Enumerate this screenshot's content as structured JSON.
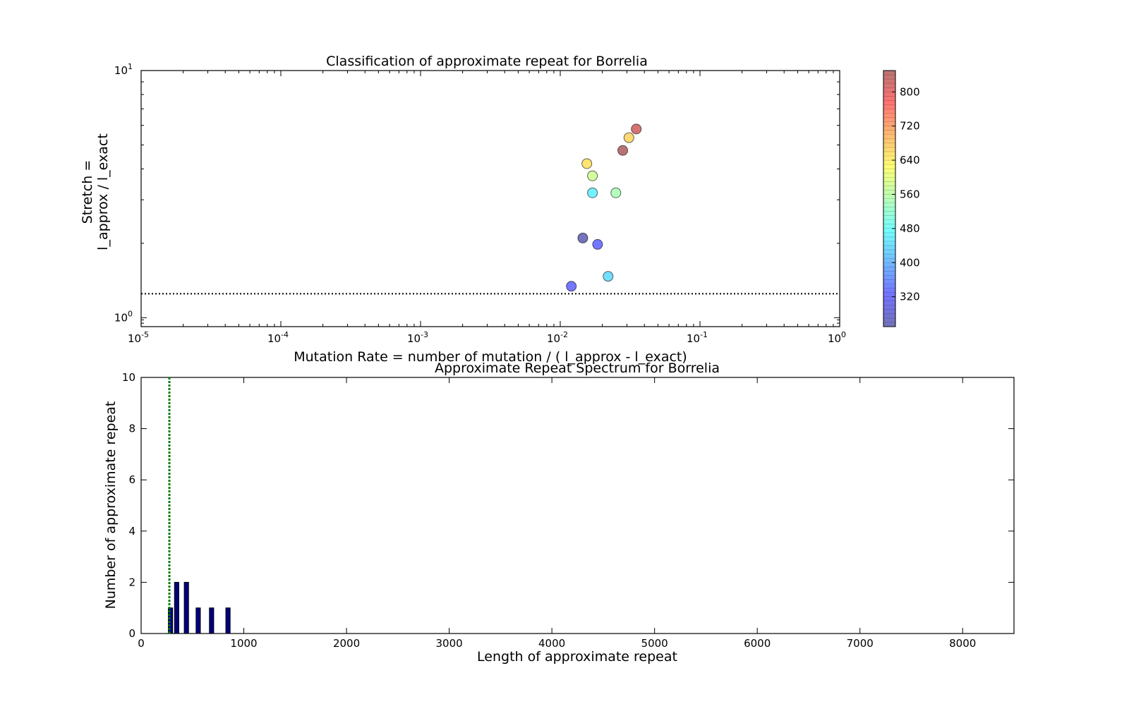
{
  "chart_data": [
    {
      "type": "scatter",
      "title": "Classification of approximate repeat for Borrelia",
      "xlabel": "Mutation Rate = number of mutation / ( l_approx - l_exact)",
      "ylabel_lines": [
        "Stretch =",
        "l_approx / l_exact"
      ],
      "x_scale": "log",
      "y_scale": "log",
      "xlim": [
        1e-05,
        1
      ],
      "ylim": [
        0.92,
        10
      ],
      "x_ticks": [
        {
          "base": "10",
          "exp": "-5",
          "value": 1e-05
        },
        {
          "base": "10",
          "exp": "-4",
          "value": 0.0001
        },
        {
          "base": "10",
          "exp": "-3",
          "value": 0.001
        },
        {
          "base": "10",
          "exp": "-2",
          "value": 0.01
        },
        {
          "base": "10",
          "exp": "-1",
          "value": 0.1
        },
        {
          "base": "10",
          "exp": "0",
          "value": 1
        }
      ],
      "y_ticks": [
        {
          "base": "10",
          "exp": "0",
          "value": 1
        },
        {
          "base": "10",
          "exp": "1",
          "value": 10
        }
      ],
      "reference_line_y": 1.25,
      "colorbar": {
        "range": [
          250,
          850
        ],
        "ticks": [
          320,
          400,
          480,
          560,
          640,
          720,
          800
        ],
        "colormap": [
          "#00007f",
          "#0000ff",
          "#007fff",
          "#00ffff",
          "#7fff7f",
          "#ffff00",
          "#ff7f00",
          "#ff0000",
          "#7f0000"
        ]
      },
      "points": [
        {
          "x": 0.035,
          "y": 5.8,
          "c": 820
        },
        {
          "x": 0.031,
          "y": 5.35,
          "c": 665
        },
        {
          "x": 0.028,
          "y": 4.75,
          "c": 850
        },
        {
          "x": 0.0155,
          "y": 4.2,
          "c": 655
        },
        {
          "x": 0.017,
          "y": 3.75,
          "c": 580
        },
        {
          "x": 0.017,
          "y": 3.2,
          "c": 460
        },
        {
          "x": 0.025,
          "y": 3.2,
          "c": 545
        },
        {
          "x": 0.0145,
          "y": 2.1,
          "c": 255
        },
        {
          "x": 0.0185,
          "y": 1.98,
          "c": 330
        },
        {
          "x": 0.022,
          "y": 1.47,
          "c": 440
        },
        {
          "x": 0.012,
          "y": 1.34,
          "c": 330
        }
      ]
    },
    {
      "type": "bar",
      "title": "Approximate Repeat Spectrum for Borrelia",
      "xlabel": "Length of approximate repeat",
      "ylabel": "Number of approximate repeat",
      "xlim": [
        0,
        8500
      ],
      "ylim": [
        0,
        10
      ],
      "x_ticks": [
        0,
        1000,
        2000,
        3000,
        4000,
        5000,
        6000,
        7000,
        8000
      ],
      "y_ticks": [
        0,
        2,
        4,
        6,
        8,
        10
      ],
      "bar_width": 42,
      "bars": [
        {
          "x": 265,
          "value": 1
        },
        {
          "x": 325,
          "value": 2
        },
        {
          "x": 420,
          "value": 2
        },
        {
          "x": 535,
          "value": 1
        },
        {
          "x": 665,
          "value": 1
        },
        {
          "x": 825,
          "value": 1
        }
      ],
      "reference_line_x": 275
    }
  ]
}
